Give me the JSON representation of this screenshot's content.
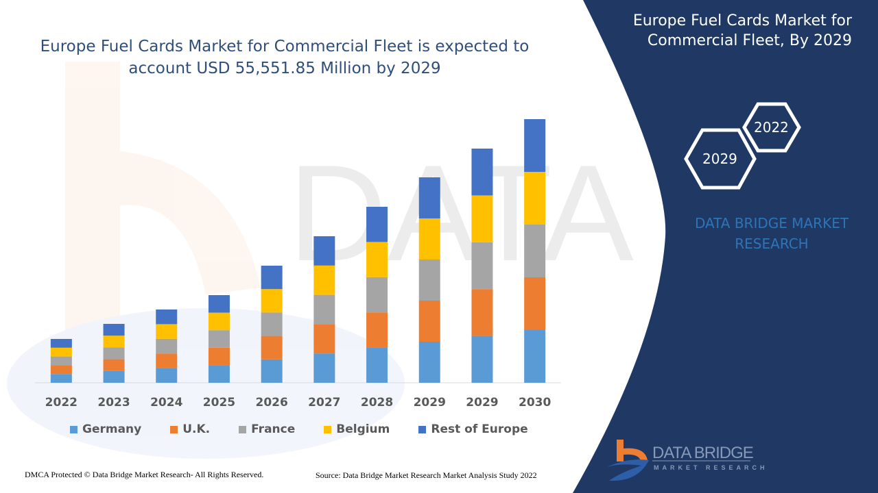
{
  "header": {
    "title": "Europe Fuel Cards Market for Commercial Fleet is expected to account USD 55,551.85 Million by 2029"
  },
  "side_panel": {
    "title": "Europe Fuel Cards Market for Commercial Fleet, By 2029",
    "hex_years": [
      "2022",
      "2029"
    ],
    "brand_text": "DATA BRIDGE MARKET RESEARCH",
    "logo_text": "DATA BRIDGE",
    "logo_subtext": "MARKET RESEARCH",
    "panel_color": "#1f3864"
  },
  "footer": {
    "left": "DMCA Protected © Data Bridge Market Research- All Rights Reserved.",
    "right": "Source: Data Bridge Market Research Market Analysis Study 2022"
  },
  "chart_data": {
    "type": "bar",
    "stacked": true,
    "title": "",
    "xlabel": "",
    "ylabel": "",
    "ylim": [
      0,
      400
    ],
    "grid": false,
    "legend_position": "bottom",
    "categories": [
      "2022",
      "2023",
      "2024",
      "2025",
      "2026",
      "2027",
      "2028",
      "2029",
      "2029",
      "2030"
    ],
    "series": [
      {
        "name": "Germany",
        "color": "#5b9bd5",
        "values": [
          12.8,
          17.2,
          21.4,
          25.6,
          34.2,
          42.8,
          51.4,
          60,
          68.4,
          77
        ]
      },
      {
        "name": "U.K.",
        "color": "#ed7d31",
        "values": [
          12.8,
          17.2,
          21.4,
          25.6,
          34.2,
          42.8,
          51.4,
          60,
          68.4,
          77
        ]
      },
      {
        "name": "France",
        "color": "#a5a5a5",
        "values": [
          12.8,
          17.2,
          21.4,
          25.6,
          34.2,
          42.8,
          51.4,
          60,
          68.4,
          77
        ]
      },
      {
        "name": "Belgium",
        "color": "#ffc000",
        "values": [
          12.8,
          17.2,
          21.4,
          25.6,
          34.2,
          42.8,
          51.4,
          60,
          68.4,
          77
        ]
      },
      {
        "name": "Rest of Europe",
        "color": "#4472c4",
        "values": [
          12.8,
          17.2,
          21.4,
          25.6,
          34.2,
          42.8,
          51.4,
          60,
          68.4,
          77
        ]
      }
    ]
  }
}
